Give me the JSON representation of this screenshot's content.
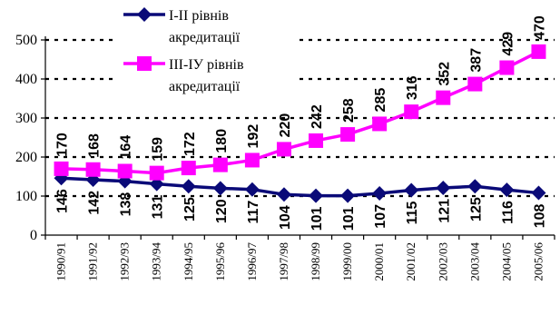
{
  "chart_data": {
    "type": "line",
    "categories": [
      "1990/91",
      "1991/92",
      "1992/93",
      "1993/94",
      "1994/95",
      "1995/96",
      "1996/97",
      "1997/98",
      "1998/99",
      "1999/00",
      "2000/01",
      "2001/02",
      "2002/03",
      "2003/04",
      "2004/05",
      "2005/06"
    ],
    "ylim": [
      0,
      500
    ],
    "yticks": [
      0,
      100,
      200,
      300,
      400,
      500
    ],
    "grid": true,
    "legend_position": "top-left",
    "series": [
      {
        "name": "І-ІІ рівнів акредитації",
        "color": "#0a0a78",
        "marker": "diamond",
        "values": [
          146,
          142,
          138,
          131,
          125,
          120,
          117,
          104,
          101,
          101,
          107,
          115,
          121,
          125,
          116,
          108
        ]
      },
      {
        "name": "ІІІ-ІУ рівнів акредитації",
        "color": "#ff00ff",
        "marker": "square",
        "values": [
          170,
          168,
          164,
          159,
          172,
          180,
          192,
          220,
          242,
          258,
          285,
          316,
          352,
          387,
          429,
          470
        ]
      }
    ]
  }
}
